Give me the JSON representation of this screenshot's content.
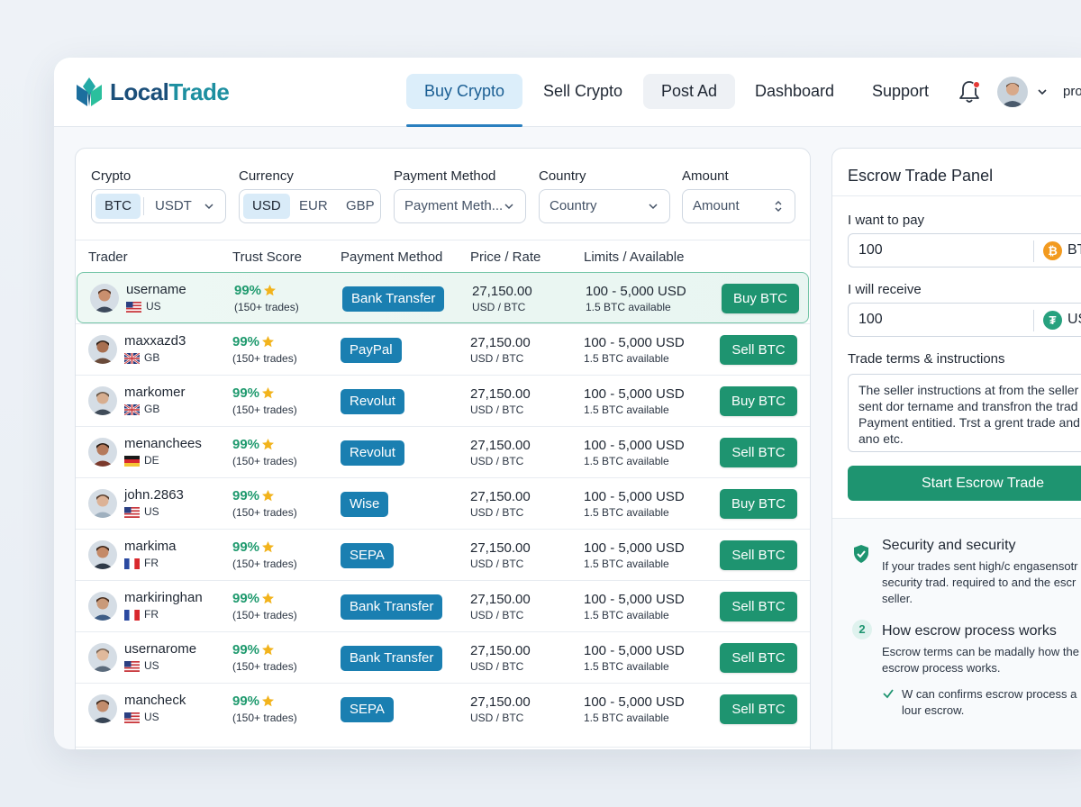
{
  "brand": {
    "name_part1": "Local",
    "name_part2": "Trade"
  },
  "nav": {
    "buy": "Buy Crypto",
    "sell": "Sell Crypto",
    "post_ad": "Post Ad",
    "dashboard": "Dashboard",
    "support": "Support",
    "profile": "pro"
  },
  "filters": {
    "crypto": {
      "label": "Crypto",
      "options": [
        "BTC",
        "USDT"
      ],
      "selected": "BTC"
    },
    "currency": {
      "label": "Currency",
      "options": [
        "USD",
        "EUR",
        "GBP"
      ],
      "selected": "USD"
    },
    "payment": {
      "label": "Payment Method",
      "placeholder": "Payment Meth..."
    },
    "country": {
      "label": "Country",
      "placeholder": "Country"
    },
    "amount": {
      "label": "Amount",
      "placeholder": "Amount"
    }
  },
  "table": {
    "headers": [
      "Trader",
      "Trust Score",
      "Payment Method",
      "Price / Rate",
      "Limits / Available"
    ],
    "rows": [
      {
        "name": "username",
        "country": "US",
        "trust": "99%",
        "trades": "(150+ trades)",
        "payment": "Bank Transfer",
        "price": "27,150.00",
        "rate": "USD / BTC",
        "limits": "100 - 5,000 USD",
        "available": "1.5 BTC available",
        "action": "Buy BTC"
      },
      {
        "name": "maxxazd3",
        "country": "GB",
        "trust": "99%",
        "trades": "(150+ trades)",
        "payment": "PayPal",
        "price": "27,150.00",
        "rate": "USD / BTC",
        "limits": "100 - 5,000 USD",
        "available": "1.5 BTC available",
        "action": "Sell BTC"
      },
      {
        "name": "markomer",
        "country": "GB",
        "trust": "99%",
        "trades": "(150+ trades)",
        "payment": "Revolut",
        "price": "27,150.00",
        "rate": "USD / BTC",
        "limits": "100 - 5,000 USD",
        "available": "1.5 BTC available",
        "action": "Buy BTC"
      },
      {
        "name": "menanchees",
        "country": "DE",
        "trust": "99%",
        "trades": "(150+ trades)",
        "payment": "Revolut",
        "price": "27,150.00",
        "rate": "USD / BTC",
        "limits": "100 - 5,000 USD",
        "available": "1.5 BTC available",
        "action": "Sell BTC"
      },
      {
        "name": "john.2863",
        "country": "US",
        "trust": "99%",
        "trades": "(150+ trades)",
        "payment": "Wise",
        "price": "27,150.00",
        "rate": "USD / BTC",
        "limits": "100 - 5,000 USD",
        "available": "1.5 BTC available",
        "action": "Buy BTC"
      },
      {
        "name": "markima",
        "country": "FR",
        "trust": "99%",
        "trades": "(150+ trades)",
        "payment": "SEPA",
        "price": "27,150.00",
        "rate": "USD / BTC",
        "limits": "100 - 5,000 USD",
        "available": "1.5 BTC available",
        "action": "Sell BTC"
      },
      {
        "name": "markiringhan",
        "country": "FR",
        "trust": "99%",
        "trades": "(150+ trades)",
        "payment": "Bank Transfer",
        "price": "27,150.00",
        "rate": "USD / BTC",
        "limits": "100 - 5,000 USD",
        "available": "1.5 BTC available",
        "action": "Sell BTC"
      },
      {
        "name": "usernarome",
        "country": "US",
        "trust": "99%",
        "trades": "(150+ trades)",
        "payment": "Bank Transfer",
        "price": "27,150.00",
        "rate": "USD / BTC",
        "limits": "100 - 5,000 USD",
        "available": "1.5 BTC available",
        "action": "Sell BTC"
      },
      {
        "name": "mancheck",
        "country": "US",
        "trust": "99%",
        "trades": "(150+ trades)",
        "payment": "SEPA",
        "price": "27,150.00",
        "rate": "USD / BTC",
        "limits": "100 - 5,000 USD",
        "available": "1.5 BTC available",
        "action": "Sell BTC"
      }
    ]
  },
  "escrow": {
    "title": "Escrow Trade Panel",
    "pay_label": "I want to pay",
    "pay_value": "100",
    "pay_currency": "BT",
    "receive_label": "I will receive",
    "receive_value": "100",
    "receive_currency": "US",
    "terms_label": "Trade terms & instructions",
    "terms_lines": [
      "The seller instructions at from the seller",
      "sent dor tername and transfron the trad",
      "Payment entitied. Trst a grent trade and",
      "ano etc."
    ],
    "start_button": "Start Escrow Trade",
    "security_title": "Security and security",
    "security_lines": [
      "If your trades sent high/c engasensotr",
      "security trad. required to and the escr",
      "seller."
    ],
    "step_number": "2",
    "process_title": "How escrow process works",
    "process_lines": [
      "Escrow terms can be madally how the",
      "escrow process works."
    ],
    "confirm_lines": [
      "W can confirms escrow process a",
      "lour escrow."
    ]
  },
  "colors": {
    "accent_blue": "#1a7fb1",
    "accent_green": "#1e9470",
    "trust_green": "#1f9a6e",
    "nav_active": "#dceefa"
  },
  "icons": {
    "bell": "bell-icon",
    "star": "star-icon",
    "shield": "shield-check-icon",
    "check": "check-icon",
    "chevron": "chevron-down-icon"
  }
}
